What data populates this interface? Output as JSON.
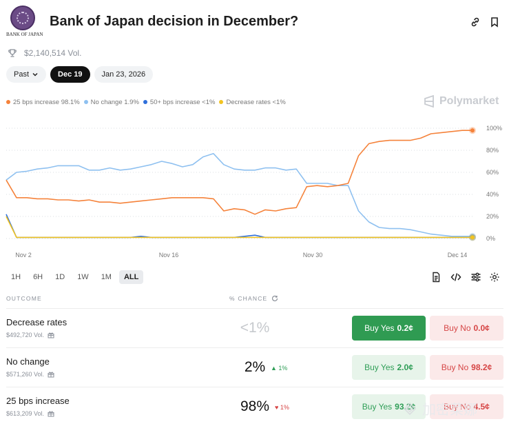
{
  "header": {
    "logo_text": "BANK OF JAPAN",
    "title": "Bank of Japan decision in December?",
    "volume": "$2,140,514 Vol."
  },
  "dates": {
    "past": "Past",
    "active": "Dec 19",
    "next": "Jan 23, 2026"
  },
  "legend": [
    {
      "label": "25 bps increase 98.1%",
      "color": "#f5823a"
    },
    {
      "label": "No change 1.9%",
      "color": "#8ec0f0"
    },
    {
      "label": "50+ bps increase <1%",
      "color": "#2f6fdb"
    },
    {
      "label": "Decrease rates <1%",
      "color": "#f2c320"
    }
  ],
  "brand": "Polymarket",
  "ranges": [
    "1H",
    "6H",
    "1D",
    "1W",
    "1M",
    "ALL"
  ],
  "table": {
    "col_outcome": "OUTCOME",
    "col_chance": "% CHANCE",
    "rows": [
      {
        "name": "Decrease rates",
        "vol": "$492,720 Vol.",
        "pct": "<1%",
        "delta": "",
        "yes": "Buy Yes",
        "yes_price": "0.2¢",
        "no": "Buy No",
        "no_price": "0.0¢"
      },
      {
        "name": "No change",
        "vol": "$571,260 Vol.",
        "pct": "2%",
        "delta": "▲ 1%",
        "yes": "Buy Yes",
        "yes_price": "2.0¢",
        "no": "Buy No",
        "no_price": "98.2¢"
      },
      {
        "name": "25 bps increase",
        "vol": "$613,209 Vol.",
        "pct": "98%",
        "delta": "♥ 1%",
        "yes": "Buy Yes",
        "yes_price": "93.2¢",
        "no": "Buy No",
        "no_price": "4.5¢"
      }
    ]
  },
  "watermark": "加密菜娜",
  "chart_data": {
    "type": "line",
    "x_ticks": [
      "Nov 2",
      "Nov 16",
      "Nov 30",
      "Dec 14"
    ],
    "y_ticks": [
      "100%",
      "80%",
      "60%",
      "40%",
      "20%",
      "0%"
    ],
    "ylim": [
      0,
      100
    ],
    "x": [
      0,
      1,
      2,
      3,
      4,
      5,
      6,
      7,
      8,
      9,
      10,
      11,
      12,
      13,
      14,
      15,
      16,
      17,
      18,
      19,
      20,
      21,
      22,
      23,
      24,
      25,
      26,
      27,
      28,
      29,
      30,
      31,
      32,
      33,
      34,
      35,
      36,
      37,
      38,
      39,
      40,
      41,
      42,
      43,
      44,
      45
    ],
    "series": [
      {
        "name": "25 bps increase",
        "color": "#f5823a",
        "values": [
          53,
          37,
          37,
          36,
          36,
          35,
          35,
          34,
          35,
          33,
          33,
          32,
          33,
          34,
          35,
          36,
          37,
          37,
          37,
          37,
          36,
          25,
          27,
          26,
          22,
          26,
          25,
          27,
          28,
          47,
          48,
          47,
          48,
          50,
          75,
          86,
          88,
          89,
          89,
          89,
          91,
          95,
          96,
          97,
          98,
          98
        ]
      },
      {
        "name": "No change",
        "color": "#8ec0f0",
        "values": [
          53,
          60,
          61,
          63,
          64,
          66,
          66,
          66,
          62,
          62,
          64,
          62,
          63,
          65,
          67,
          70,
          68,
          65,
          67,
          74,
          77,
          67,
          63,
          62,
          62,
          64,
          64,
          62,
          63,
          50,
          50,
          50,
          48,
          48,
          25,
          15,
          10,
          9,
          9,
          8,
          6,
          4,
          3,
          2,
          2,
          2
        ]
      },
      {
        "name": "50+ bps increase",
        "color": "#2f6fdb",
        "values": [
          22,
          1,
          1,
          1,
          1,
          1,
          1,
          1,
          1,
          1,
          1,
          1,
          1,
          2,
          1,
          1,
          1,
          1,
          1,
          1,
          1,
          1,
          1,
          2,
          3,
          1,
          1,
          1,
          1,
          1,
          1,
          1,
          1,
          1,
          1,
          1,
          1,
          1,
          1,
          1,
          1,
          1,
          1,
          1,
          1,
          1
        ]
      },
      {
        "name": "Decrease rates",
        "color": "#f2c320",
        "values": [
          20,
          1,
          1,
          1,
          1,
          1,
          1,
          1,
          1,
          1,
          1,
          1,
          1,
          1,
          1,
          1,
          1,
          1,
          1,
          1,
          1,
          1,
          1,
          1,
          1,
          1,
          1,
          1,
          1,
          1,
          1,
          1,
          1,
          1,
          1,
          1,
          1,
          1,
          1,
          1,
          1,
          1,
          1,
          1,
          1,
          1
        ]
      }
    ]
  }
}
